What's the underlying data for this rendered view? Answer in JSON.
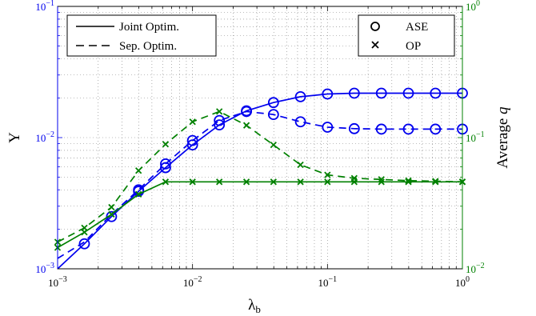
{
  "chart_data": {
    "type": "line",
    "x_scale": "log",
    "y_scale": "log",
    "x": [
      0.001,
      0.00158,
      0.00251,
      0.00398,
      0.00631,
      0.01,
      0.0158,
      0.0251,
      0.0398,
      0.0631,
      0.1,
      0.158,
      0.251,
      0.398,
      0.631,
      1.0
    ],
    "xlim": [
      0.001,
      1
    ],
    "ylim_left": [
      0.001,
      0.1
    ],
    "ylim_right": [
      0.01,
      1
    ],
    "xlabel": "λ_b",
    "ylabel_left": "Υ",
    "ylabel_right": "Average q",
    "x_ticks": [
      {
        "base": "10",
        "exp": "−3",
        "value": 0.001
      },
      {
        "base": "10",
        "exp": "−2",
        "value": 0.01
      },
      {
        "base": "10",
        "exp": "−1",
        "value": 0.1
      },
      {
        "base": "10",
        "exp": "0",
        "value": 1
      }
    ],
    "y_ticks_left": [
      {
        "base": "10",
        "exp": "−3",
        "value": 0.001
      },
      {
        "base": "10",
        "exp": "−2",
        "value": 0.01
      },
      {
        "base": "10",
        "exp": "−1",
        "value": 0.1
      }
    ],
    "y_ticks_right": [
      {
        "base": "10",
        "exp": "−2",
        "value": 0.01
      },
      {
        "base": "10",
        "exp": "−1",
        "value": 0.1
      },
      {
        "base": "10",
        "exp": "0",
        "value": 1
      }
    ],
    "grid": true,
    "series": [
      {
        "axis": "left",
        "color": "#0000ee",
        "style": "solid",
        "marker": "circle",
        "marker_x": [
          0.00158,
          0.00251,
          0.00398,
          0.00631,
          0.01,
          0.0158,
          0.0251,
          0.0398,
          0.0631,
          0.1,
          0.158,
          0.251,
          0.398,
          0.631,
          1.0
        ],
        "values": [
          0.001,
          0.00155,
          0.0025,
          0.0039,
          0.0059,
          0.0088,
          0.0125,
          0.016,
          0.0185,
          0.0205,
          0.0215,
          0.0218,
          0.0218,
          0.0218,
          0.0218,
          0.0218
        ]
      },
      {
        "axis": "left",
        "color": "#0000ee",
        "style": "dashed",
        "marker": "circle",
        "marker_x": [
          0.00398,
          0.00631,
          0.01,
          0.0158,
          0.0251,
          0.0398,
          0.0631,
          0.1,
          0.158,
          0.251,
          0.398,
          0.631,
          1.0
        ],
        "values": [
          0.0012,
          0.0016,
          0.0026,
          0.004,
          0.0063,
          0.0095,
          0.0135,
          0.0158,
          0.015,
          0.0132,
          0.012,
          0.0117,
          0.0116,
          0.0116,
          0.0116,
          0.0116
        ]
      },
      {
        "axis": "right",
        "color": "#008000",
        "style": "solid",
        "marker": "x",
        "marker_x": [
          0.001,
          0.00158,
          0.00251,
          0.00398,
          0.00631,
          0.01,
          0.0158,
          0.0251,
          0.0398,
          0.0631,
          0.1,
          0.158,
          0.251,
          0.398,
          0.631,
          1.0
        ],
        "values": [
          0.0145,
          0.019,
          0.026,
          0.037,
          0.046,
          0.046,
          0.046,
          0.046,
          0.046,
          0.046,
          0.046,
          0.046,
          0.046,
          0.046,
          0.046,
          0.046
        ]
      },
      {
        "axis": "right",
        "color": "#008000",
        "style": "dashed",
        "marker": "x",
        "marker_x": [
          0.001,
          0.00158,
          0.00251,
          0.00398,
          0.00631,
          0.01,
          0.0158,
          0.0251,
          0.0398,
          0.0631,
          0.1,
          0.158,
          0.251,
          0.398,
          0.631,
          1.0
        ],
        "values": [
          0.016,
          0.0205,
          0.0295,
          0.056,
          0.089,
          0.132,
          0.158,
          0.124,
          0.088,
          0.062,
          0.052,
          0.049,
          0.048,
          0.047,
          0.0465,
          0.046
        ]
      }
    ],
    "legend_lines": [
      {
        "label": "Joint Optim.",
        "style": "solid"
      },
      {
        "label": "Sep. Optim.",
        "style": "dashed"
      }
    ],
    "legend_markers": [
      {
        "label": "ASE",
        "marker": "circle"
      },
      {
        "label": "OP",
        "marker": "x"
      }
    ],
    "legend_lines_placement": "top-left",
    "legend_markers_placement": "top-right"
  }
}
